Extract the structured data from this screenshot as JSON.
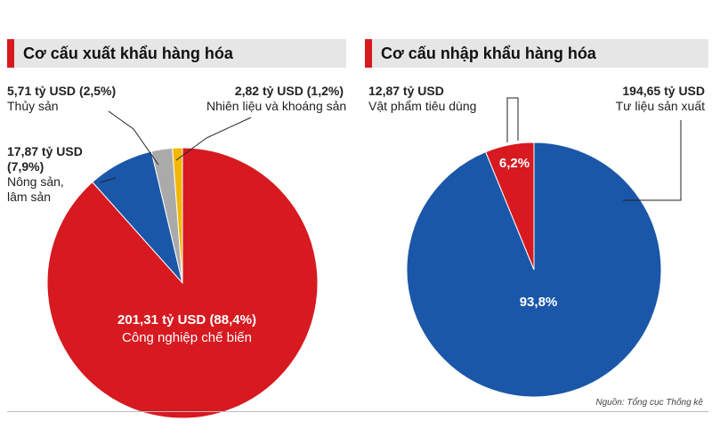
{
  "colors": {
    "red": "#d71920",
    "blue": "#1a57a8",
    "gray": "#aaaaaa",
    "yellow": "#f2b705",
    "header_bg": "#e6e6e6",
    "label_line": "#222222"
  },
  "source": "Nguồn: Tổng cục Thống kê",
  "chart_data": [
    {
      "type": "pie",
      "title": "Cơ cấu xuất khẩu hàng hóa",
      "slices": [
        {
          "name": "Công nghiệp chế biến",
          "value_text": "201,31 tỷ USD",
          "value": 201.31,
          "share_text": "(88,4%)",
          "share": 88.4,
          "color": "#d71920"
        },
        {
          "name": "Nông sản, lâm sản",
          "name_line1": "Nông sản,",
          "name_line2": "lâm sản",
          "value_text": "17,87 tỷ USD",
          "value": 17.87,
          "share_text": "(7,9%)",
          "share": 7.9,
          "color": "#1a57a8"
        },
        {
          "name": "Thủy sản",
          "value_text": "5,71 tỷ USD",
          "value": 5.71,
          "share_text": "(2,5%)",
          "share": 2.5,
          "color": "#aaaaaa"
        },
        {
          "name": "Nhiên liệu và khoáng sản",
          "value_text": "2,82 tỷ USD",
          "value": 2.82,
          "share_text": "(1,2%)",
          "share": 1.2,
          "color": "#f2b705"
        }
      ]
    },
    {
      "type": "pie",
      "title": "Cơ cấu nhập khẩu hàng hóa",
      "slices": [
        {
          "name": "Tư liệu sản xuất",
          "value_text": "194,65 tỷ USD",
          "value": 194.65,
          "share_text": "93,8%",
          "share": 93.8,
          "color": "#1a57a8"
        },
        {
          "name": "Vật phẩm tiêu dùng",
          "value_text": "12,87 tỷ USD",
          "value": 12.87,
          "share_text": "6,2%",
          "share": 6.2,
          "color": "#d71920"
        }
      ]
    }
  ]
}
